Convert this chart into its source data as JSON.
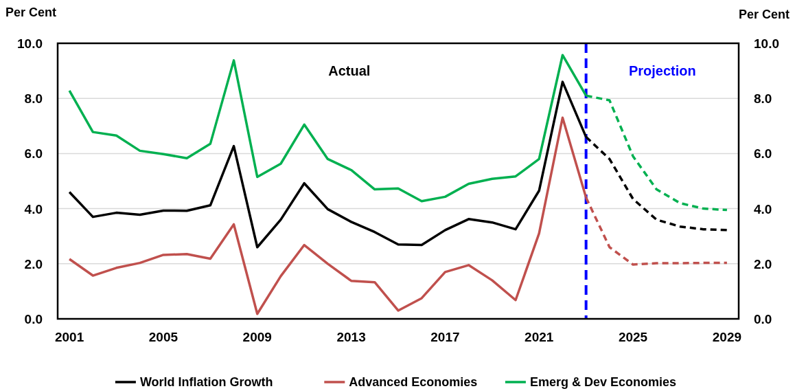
{
  "chart_data": {
    "type": "line",
    "ylabel": "Per Cent",
    "y2label": "Per Cent",
    "xlim": [
      2000.5,
      2029.5
    ],
    "xticks": [
      2001,
      2005,
      2009,
      2013,
      2017,
      2021,
      2025,
      2029
    ],
    "ylim": [
      0,
      10
    ],
    "yticks": [
      {
        "value": 0,
        "label": "0.0"
      },
      {
        "value": 2,
        "label": "2.0"
      },
      {
        "value": 4,
        "label": "4.0"
      },
      {
        "value": 6,
        "label": "6.0"
      },
      {
        "value": 8,
        "label": "8.0"
      },
      {
        "value": 10,
        "label": "10.0"
      }
    ],
    "y2lim": [
      0,
      10
    ],
    "y2ticks": [
      {
        "value": 0,
        "label": "0.0"
      },
      {
        "value": 2,
        "label": "2.0"
      },
      {
        "value": 4,
        "label": "4.0"
      },
      {
        "value": 6,
        "label": "6.0"
      },
      {
        "value": 8,
        "label": "8.0"
      },
      {
        "value": 10,
        "label": "10.0"
      }
    ],
    "grid": "y",
    "legend": "bottom",
    "series": [
      {
        "name": "World Inflation Growth",
        "color": "#000000",
        "line_style": "solid",
        "x": [
          2001,
          2002,
          2003,
          2004,
          2005,
          2006,
          2007,
          2008,
          2009,
          2010,
          2011,
          2012,
          2013,
          2014,
          2015,
          2016,
          2017,
          2018,
          2019,
          2020,
          2021,
          2022,
          2023
        ],
        "values": [
          4.6,
          3.7,
          3.85,
          3.78,
          3.93,
          3.92,
          4.12,
          6.27,
          2.6,
          3.6,
          4.92,
          3.98,
          3.52,
          3.15,
          2.7,
          2.68,
          3.22,
          3.62,
          3.5,
          3.25,
          4.65,
          8.6,
          6.6
        ]
      },
      {
        "name": "Advanced Economies",
        "color": "#c0504d",
        "line_style": "solid",
        "x": [
          2001,
          2002,
          2003,
          2004,
          2005,
          2006,
          2007,
          2008,
          2009,
          2010,
          2011,
          2012,
          2013,
          2014,
          2015,
          2016,
          2017,
          2018,
          2019,
          2020,
          2021,
          2022,
          2023
        ],
        "values": [
          2.17,
          1.57,
          1.85,
          2.03,
          2.32,
          2.35,
          2.18,
          3.43,
          0.18,
          1.55,
          2.68,
          2.0,
          1.38,
          1.33,
          0.3,
          0.75,
          1.7,
          1.95,
          1.4,
          0.68,
          3.1,
          7.3,
          4.4
        ]
      },
      {
        "name": "Emerg & Dev Economies",
        "color": "#00b050",
        "line_style": "solid",
        "x": [
          2001,
          2002,
          2003,
          2004,
          2005,
          2006,
          2007,
          2008,
          2009,
          2010,
          2011,
          2012,
          2013,
          2014,
          2015,
          2016,
          2017,
          2018,
          2019,
          2020,
          2021,
          2022,
          2023
        ],
        "values": [
          8.28,
          6.78,
          6.65,
          6.1,
          5.98,
          5.83,
          6.35,
          9.38,
          5.15,
          5.63,
          7.05,
          5.8,
          5.4,
          4.7,
          4.73,
          4.27,
          4.43,
          4.9,
          5.08,
          5.17,
          5.8,
          9.57,
          8.1
        ]
      },
      {
        "color": "#000000",
        "line_style": "dashed",
        "x": [
          2023,
          2024,
          2025,
          2026,
          2027,
          2028,
          2029
        ],
        "values": [
          6.6,
          5.8,
          4.35,
          3.6,
          3.35,
          3.25,
          3.22
        ]
      },
      {
        "color": "#c0504d",
        "line_style": "dashed",
        "x": [
          2023,
          2024,
          2025,
          2026,
          2027,
          2028,
          2029
        ],
        "values": [
          4.4,
          2.6,
          1.97,
          2.02,
          2.02,
          2.03,
          2.03
        ]
      },
      {
        "color": "#00b050",
        "line_style": "dashed",
        "x": [
          2023,
          2024,
          2025,
          2026,
          2027,
          2028,
          2029
        ],
        "values": [
          8.1,
          7.93,
          5.9,
          4.7,
          4.2,
          4.0,
          3.95
        ]
      }
    ],
    "ref_lines": [
      {
        "axis": "x",
        "value": 2023,
        "color": "#0000ff",
        "line_style": "dashed"
      }
    ],
    "annotations": [
      "Actual",
      "Projection"
    ]
  }
}
